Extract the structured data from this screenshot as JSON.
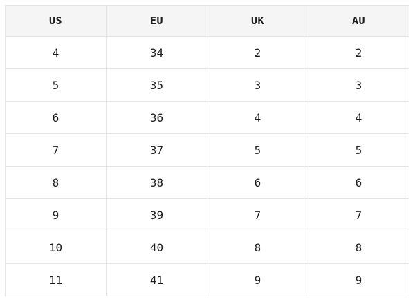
{
  "table": {
    "headers": [
      "US",
      "EU",
      "UK",
      "AU"
    ],
    "rows": [
      [
        "4",
        "34",
        "2",
        "2"
      ],
      [
        "5",
        "35",
        "3",
        "3"
      ],
      [
        "6",
        "36",
        "4",
        "4"
      ],
      [
        "7",
        "37",
        "5",
        "5"
      ],
      [
        "8",
        "38",
        "6",
        "6"
      ],
      [
        "9",
        "39",
        "7",
        "7"
      ],
      [
        "10",
        "40",
        "8",
        "8"
      ],
      [
        "11",
        "41",
        "9",
        "9"
      ]
    ]
  },
  "colors": {
    "page_bg": "#ffffff",
    "header_bg": "#f5f5f5",
    "border": "#e4e4e4",
    "text": "#1e1e1e"
  },
  "chart_data": {
    "type": "table",
    "columns": [
      "US",
      "EU",
      "UK",
      "AU"
    ],
    "rows": [
      [
        4,
        34,
        2,
        2
      ],
      [
        5,
        35,
        3,
        3
      ],
      [
        6,
        36,
        4,
        4
      ],
      [
        7,
        37,
        5,
        5
      ],
      [
        8,
        38,
        6,
        6
      ],
      [
        9,
        39,
        7,
        7
      ],
      [
        10,
        40,
        8,
        8
      ],
      [
        11,
        41,
        9,
        9
      ]
    ],
    "layout": {
      "grid": true,
      "header_background": "#f5f5f5",
      "equal_column_widths": true
    }
  }
}
